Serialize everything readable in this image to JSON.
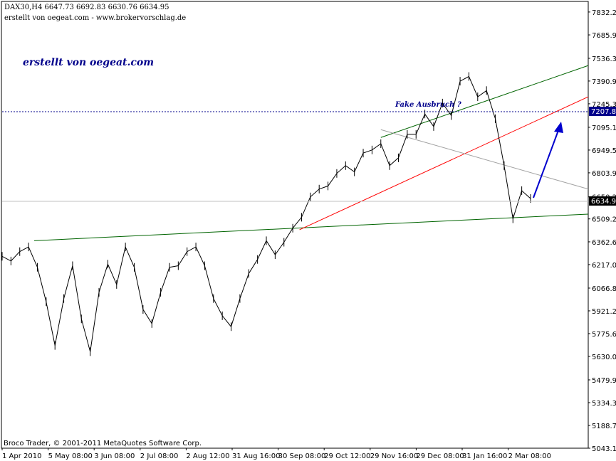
{
  "header": {
    "symbol_line": "DAX30,H4  6647.73 6692.83 6630.76 6634.95",
    "credit_line": "erstellt von oegeat.com - www.brokervorschlag.de"
  },
  "watermark": "erstellt von oegeat.com",
  "annotation": "Fake Ausbruch ?",
  "copyright": "Broco Trader, © 2001-2011 MetaQuotes Software Corp.",
  "colors": {
    "price": "#000000",
    "support_line": "#006400",
    "upper_channel": "#006400",
    "red_trend": "#ff0000",
    "gray_trend": "#a0a0a0",
    "arrow": "#0000cd",
    "current_price_bg": "#000000",
    "level_label_bg": "#00008b"
  },
  "chart_data": {
    "type": "line",
    "title": "DAX30,H4",
    "ylim": [
      5043.1,
      7900
    ],
    "y_ticks": [
      "7832.25",
      "7685.90",
      "7536.30",
      "7390.90",
      "7245.30",
      "7095.15",
      "6949.55",
      "6803.95",
      "6650.20",
      "6509.20",
      "6362.60",
      "6217.00",
      "6066.85",
      "5921.25",
      "5775.65",
      "5630.05",
      "5479.90",
      "5334.30",
      "5188.70",
      "5043.10"
    ],
    "x_labels": [
      "1 Apr 2010",
      "5 May 08:00",
      "3 Jun 08:00",
      "2 Jul 08:00",
      "2 Aug 12:00",
      "31 Aug 16:00",
      "30 Sep 08:00",
      "29 Oct 12:00",
      "29 Nov 16:00",
      "29 Dec 08:00",
      "31 Jan 16:00",
      "2 Mar 08:00"
    ],
    "current_price": "6634.95",
    "level_price": "7207.81",
    "series": [
      {
        "close": [
          6270,
          6240,
          6300,
          6330,
          6200,
          5980,
          5700,
          6000,
          6210,
          5870,
          5660,
          6040,
          6220,
          6090,
          6330,
          6200,
          5930,
          5840,
          6040,
          6200,
          6210,
          6300,
          6330,
          6210,
          6000,
          5890,
          5820,
          6000,
          6160,
          6250,
          6370,
          6280,
          6360,
          6450,
          6520,
          6650,
          6700,
          6720,
          6800,
          6850,
          6810,
          6930,
          6950,
          6990,
          6850,
          6900,
          7050,
          7050,
          7180,
          7100,
          7250,
          7170,
          7390,
          7420,
          7290,
          7330,
          7150,
          6850,
          6510,
          6690,
          6640
        ]
      }
    ],
    "trendlines": [
      {
        "from": [
          "1 Apr 2010",
          6370
        ],
        "to": [
          "end",
          6540
        ]
      },
      {
        "from": [
          "30 Sep 08:00",
          6440
        ],
        "to": [
          "end",
          7290
        ]
      },
      {
        "from": [
          "29 Nov 16:00",
          7030
        ],
        "to": [
          "end",
          7490
        ]
      },
      {
        "from": [
          "29 Nov 16:00",
          7080
        ],
        "to": [
          "end",
          6700
        ]
      }
    ]
  }
}
